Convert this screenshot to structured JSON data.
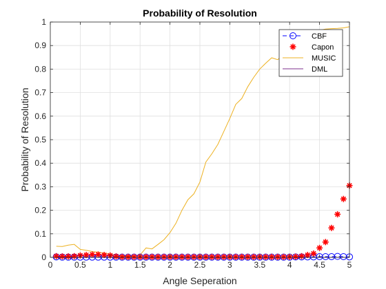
{
  "chart_data": {
    "type": "line",
    "title": "Probability of Resolution",
    "xlabel": "Angle Seperation",
    "ylabel": "Probability of Resolution",
    "xlim": [
      0,
      5
    ],
    "ylim": [
      0,
      1
    ],
    "xticks": [
      "0",
      "0.5",
      "1",
      "1.5",
      "2",
      "2.5",
      "3",
      "3.5",
      "4",
      "4.5",
      "5"
    ],
    "yticks": [
      "0",
      "0.1",
      "0.2",
      "0.3",
      "0.4",
      "0.5",
      "0.6",
      "0.7",
      "0.8",
      "0.9",
      "1"
    ],
    "grid": true,
    "legend_position": "top-right",
    "x": [
      0.1,
      0.2,
      0.3,
      0.4,
      0.5,
      0.6,
      0.7,
      0.8,
      0.9,
      1.0,
      1.1,
      1.2,
      1.3,
      1.4,
      1.5,
      1.6,
      1.7,
      1.8,
      1.9,
      2.0,
      2.1,
      2.2,
      2.3,
      2.4,
      2.5,
      2.6,
      2.7,
      2.8,
      2.9,
      3.0,
      3.1,
      3.2,
      3.3,
      3.4,
      3.5,
      3.6,
      3.7,
      3.8,
      3.9,
      4.0,
      4.1,
      4.2,
      4.3,
      4.4,
      4.5,
      4.6,
      4.7,
      4.8,
      4.9,
      5.0
    ],
    "series": [
      {
        "name": "CBF",
        "style": "dashed-line-circle-marker",
        "color": "#0000ff",
        "values": [
          0.002,
          0.001,
          0.001,
          0.001,
          0.001,
          0.001,
          0.001,
          0.001,
          0.001,
          0.001,
          0.001,
          0.001,
          0.001,
          0.001,
          0.001,
          0.001,
          0.001,
          0.001,
          0.001,
          0.001,
          0.001,
          0.001,
          0.001,
          0.001,
          0.001,
          0.001,
          0.001,
          0.001,
          0.001,
          0.001,
          0.001,
          0.001,
          0.001,
          0.001,
          0.001,
          0.001,
          0.001,
          0.001,
          0.001,
          0.001,
          0.002,
          0.002,
          0.002,
          0.002,
          0.003,
          0.003,
          0.003,
          0.004,
          0.003,
          0.002
        ]
      },
      {
        "name": "Capon",
        "style": "asterisk-marker",
        "color": "#ff0000",
        "values": [
          0.005,
          0.004,
          0.004,
          0.005,
          0.008,
          0.01,
          0.012,
          0.012,
          0.01,
          0.008,
          0.004,
          0.002,
          0.002,
          0.002,
          0.002,
          0.002,
          0.002,
          0.002,
          0.002,
          0.002,
          0.002,
          0.002,
          0.002,
          0.002,
          0.002,
          0.002,
          0.002,
          0.002,
          0.002,
          0.002,
          0.002,
          0.002,
          0.002,
          0.002,
          0.002,
          0.002,
          0.002,
          0.002,
          0.002,
          0.002,
          0.003,
          0.005,
          0.01,
          0.016,
          0.04,
          0.065,
          0.125,
          0.183,
          0.248,
          0.305
        ]
      },
      {
        "name": "MUSIC",
        "style": "solid-line",
        "color": "#edb120",
        "values": [
          0.047,
          0.046,
          0.052,
          0.055,
          0.034,
          0.03,
          0.025,
          0.022,
          0.018,
          0.014,
          0.009,
          0.006,
          0.006,
          0.006,
          0.01,
          0.04,
          0.036,
          0.055,
          0.075,
          0.105,
          0.145,
          0.2,
          0.245,
          0.27,
          0.32,
          0.405,
          0.44,
          0.48,
          0.535,
          0.59,
          0.65,
          0.675,
          0.725,
          0.765,
          0.8,
          0.825,
          0.848,
          0.84,
          0.862,
          0.88,
          0.9,
          0.92,
          0.94,
          0.955,
          0.965,
          0.97,
          0.972,
          0.973,
          0.975,
          0.98
        ]
      },
      {
        "name": "DML",
        "style": "solid-line",
        "color": "#7e2f8e",
        "values": [
          0,
          0,
          0,
          0,
          0,
          0,
          0,
          0,
          0,
          0,
          0,
          0,
          0,
          0,
          0,
          0,
          0,
          0,
          0,
          0,
          0,
          0,
          0,
          0,
          0,
          0,
          0,
          0,
          0,
          0,
          0,
          0,
          0,
          0,
          0,
          0,
          0,
          0,
          0,
          0,
          0,
          0,
          0,
          0,
          0,
          0,
          0,
          0,
          0,
          0
        ]
      }
    ]
  }
}
